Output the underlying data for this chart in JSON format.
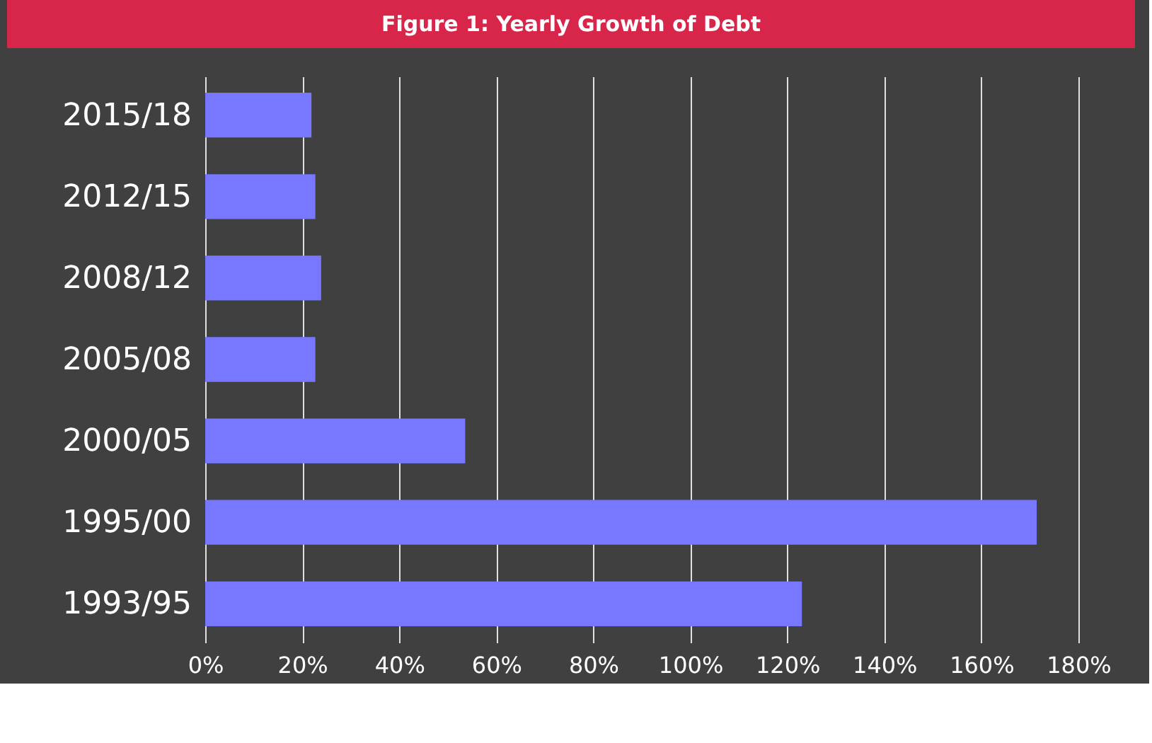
{
  "chart_data": {
    "type": "bar",
    "orientation": "horizontal",
    "title": "Figure 1: Yearly Growth of Debt",
    "categories": [
      "2015/18",
      "2012/15",
      "2008/12",
      "2005/08",
      "2000/05",
      "1995/00",
      "1993/95"
    ],
    "values": [
      21.9,
      22.7,
      23.9,
      22.7,
      53.6,
      171.4,
      123
    ],
    "color": "#7777ff",
    "xlim": [
      0,
      180
    ],
    "xticks": [
      {
        "value": 0,
        "label": "0%"
      },
      {
        "value": 20,
        "label": "20%"
      },
      {
        "value": 40,
        "label": "40%"
      },
      {
        "value": 60,
        "label": "60%"
      },
      {
        "value": 80,
        "label": "80%"
      },
      {
        "value": 100,
        "label": "100%"
      },
      {
        "value": 120,
        "label": "120%"
      },
      {
        "value": 140,
        "label": "140%"
      },
      {
        "value": 160,
        "label": "160%"
      },
      {
        "value": 180,
        "label": "180%"
      }
    ],
    "grid": "x"
  }
}
